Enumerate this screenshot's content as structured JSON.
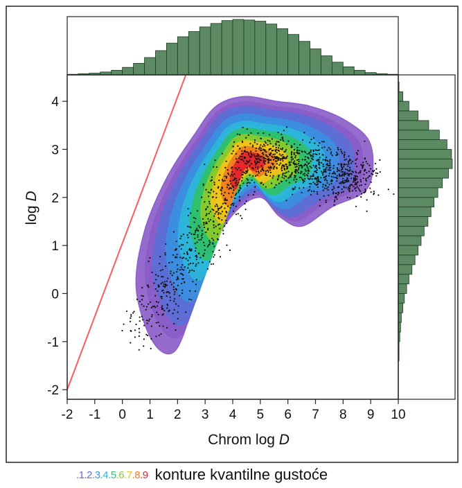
{
  "chart_data": {
    "type": "scatter",
    "xlabel": "Chrom log ",
    "xlabel_italic": "D",
    "ylabel": "log ",
    "ylabel_italic": "D",
    "xlim": [
      -2,
      10
    ],
    "ylim": [
      -2.2,
      4.55
    ],
    "x_ticks": [
      -2,
      -1,
      0,
      1,
      2,
      3,
      4,
      5,
      6,
      7,
      8,
      9,
      10
    ],
    "y_ticks": [
      -2,
      -1,
      0,
      1,
      2,
      3,
      4
    ],
    "grid": false,
    "reference_line": {
      "from": [
        -2,
        -2
      ],
      "to": [
        2.3,
        4.55
      ],
      "color": "#ff5a5a"
    },
    "density_center": [
      4.5,
      2.75
    ],
    "contour_levels": [
      {
        "label": ".1",
        "color": "#8a5cc8",
        "level": 0.1
      },
      {
        "label": ".2",
        "color": "#5a6fd6",
        "level": 0.2
      },
      {
        "label": ".3",
        "color": "#3b8fe0",
        "level": 0.3
      },
      {
        "label": ".4",
        "color": "#2cb6d8",
        "level": 0.4
      },
      {
        "label": ".5",
        "color": "#2fc06a",
        "level": 0.5
      },
      {
        "label": ".6",
        "color": "#8acb2b",
        "level": 0.6
      },
      {
        "label": ".7",
        "color": "#f0c419",
        "level": 0.7
      },
      {
        "label": ".8",
        "color": "#f07d1f",
        "level": 0.8
      },
      {
        "label": ".9",
        "color": "#e5262b",
        "level": 0.9
      }
    ],
    "x_histogram": [
      1,
      2,
      3,
      5,
      8,
      13,
      20,
      30,
      42,
      55,
      66,
      75,
      83,
      89,
      94,
      96,
      95,
      93,
      88,
      80,
      70,
      58,
      45,
      33,
      22,
      14,
      8,
      4,
      2,
      1
    ],
    "y_histogram": [
      {
        "y": 4.3,
        "count": 1
      },
      {
        "y": 4.1,
        "count": 6
      },
      {
        "y": 3.9,
        "count": 14
      },
      {
        "y": 3.7,
        "count": 26
      },
      {
        "y": 3.5,
        "count": 40
      },
      {
        "y": 3.3,
        "count": 54
      },
      {
        "y": 3.1,
        "count": 64
      },
      {
        "y": 2.9,
        "count": 70
      },
      {
        "y": 2.7,
        "count": 71
      },
      {
        "y": 2.5,
        "count": 66
      },
      {
        "y": 2.3,
        "count": 58
      },
      {
        "y": 2.1,
        "count": 52
      },
      {
        "y": 1.9,
        "count": 47
      },
      {
        "y": 1.7,
        "count": 43
      },
      {
        "y": 1.5,
        "count": 39
      },
      {
        "y": 1.3,
        "count": 34
      },
      {
        "y": 1.1,
        "count": 30
      },
      {
        "y": 0.9,
        "count": 26
      },
      {
        "y": 0.7,
        "count": 22
      },
      {
        "y": 0.5,
        "count": 18
      },
      {
        "y": 0.3,
        "count": 14
      },
      {
        "y": 0.1,
        "count": 11
      },
      {
        "y": -0.1,
        "count": 8
      },
      {
        "y": -0.3,
        "count": 6
      },
      {
        "y": -0.5,
        "count": 4
      },
      {
        "y": -0.7,
        "count": 3
      },
      {
        "y": -0.9,
        "count": 2
      },
      {
        "y": -1.1,
        "count": 1
      },
      {
        "y": -1.3,
        "count": 1
      }
    ],
    "histogram_color": "#5b8a63",
    "point_color": "#111111"
  },
  "legend": {
    "scale_labels": [
      ".1",
      ".2",
      ".3",
      ".4",
      ".5",
      ".6",
      ".7",
      ".8",
      ".9"
    ],
    "label": "konture kvantilne gustoće"
  }
}
